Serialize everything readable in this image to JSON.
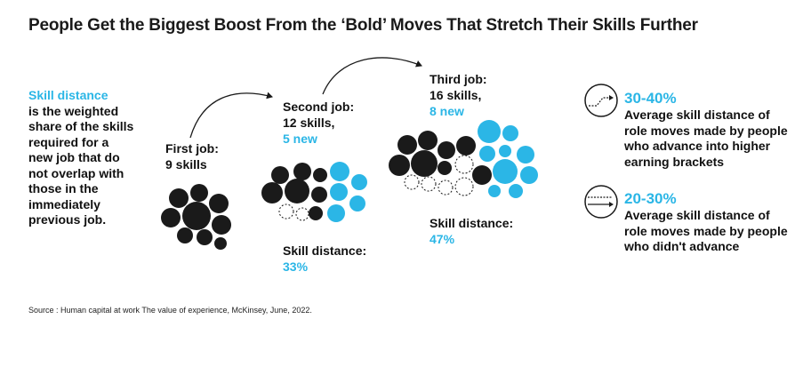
{
  "title": "People Get the Biggest Boost From the ‘Bold’ Moves That Stretch Their Skills Further",
  "definition": {
    "term": "Skill distance",
    "body": "is the weighted share of the skills required for a new job that do not overlap with those in the immediately previous job."
  },
  "jobs": [
    {
      "label": "First job:",
      "skills": "9 skills",
      "new": "",
      "skill_distance_label": "",
      "skill_distance_value": ""
    },
    {
      "label": "Second job:",
      "skills": "12 skills,",
      "new": "5 new",
      "skill_distance_label": "Skill distance:",
      "skill_distance_value": "33%"
    },
    {
      "label": "Third job:",
      "skills": "16 skills,",
      "new": "8 new",
      "skill_distance_label": "Skill distance:",
      "skill_distance_value": "47%"
    }
  ],
  "stats": [
    {
      "icon": "rising-step-arrow-icon",
      "range": "30-40%",
      "description": "Average skill distance of role moves made by people who advance into higher earning brackets"
    },
    {
      "icon": "flat-arrow-icon",
      "range": "20-30%",
      "description": "Average skill distance of role moves made by people who didn't advance"
    }
  ],
  "source": "Source : Human capital at work The value of experience, McKinsey, June, 2022.",
  "colors": {
    "accent": "#2bb6e6",
    "dark": "#1a1a1a"
  }
}
